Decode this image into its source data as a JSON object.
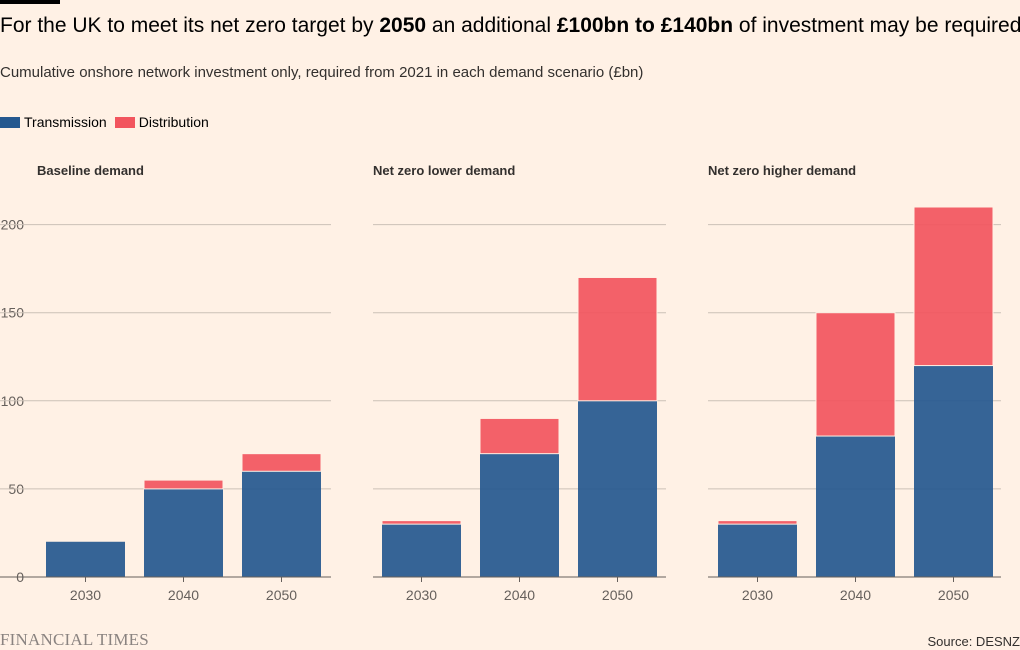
{
  "header": {
    "title_parts": [
      {
        "text": "For the UK to meet its net zero target by ",
        "bold": false
      },
      {
        "text": "2050",
        "bold": true
      },
      {
        "text": " an additional ",
        "bold": false
      },
      {
        "text": "£100bn to £140bn",
        "bold": true
      },
      {
        "text": " of investment may be required",
        "bold": false
      }
    ],
    "subtitle": "Cumulative onshore network investment only, required from 2021 in each demand scenario (£bn)"
  },
  "legend": [
    {
      "label": "Transmission",
      "color": "#25588f"
    },
    {
      "label": "Distribution",
      "color": "#f2555e"
    }
  ],
  "footer": {
    "brand": "FINANCIAL TIMES",
    "source": "Source: DESNZ"
  },
  "chart_data": {
    "type": "bar",
    "stacked": true,
    "categories": [
      "2030",
      "2040",
      "2050"
    ],
    "ylim": [
      0,
      210
    ],
    "yticks": [
      0,
      50,
      100,
      150,
      200
    ],
    "grid": true,
    "legend_position": "top-left",
    "colors": {
      "Transmission": "#25588f",
      "Distribution": "#f2555e"
    },
    "panels": [
      {
        "title": "Baseline demand",
        "series": [
          {
            "name": "Transmission",
            "values": [
              20,
              50,
              60
            ]
          },
          {
            "name": "Distribution",
            "values": [
              0,
              5,
              10
            ]
          }
        ]
      },
      {
        "title": "Net zero lower demand",
        "series": [
          {
            "name": "Transmission",
            "values": [
              30,
              70,
              100
            ]
          },
          {
            "name": "Distribution",
            "values": [
              2,
              20,
              70
            ]
          }
        ]
      },
      {
        "title": "Net zero higher demand",
        "series": [
          {
            "name": "Transmission",
            "values": [
              30,
              80,
              120
            ]
          },
          {
            "name": "Distribution",
            "values": [
              2,
              70,
              90
            ]
          }
        ]
      }
    ]
  }
}
